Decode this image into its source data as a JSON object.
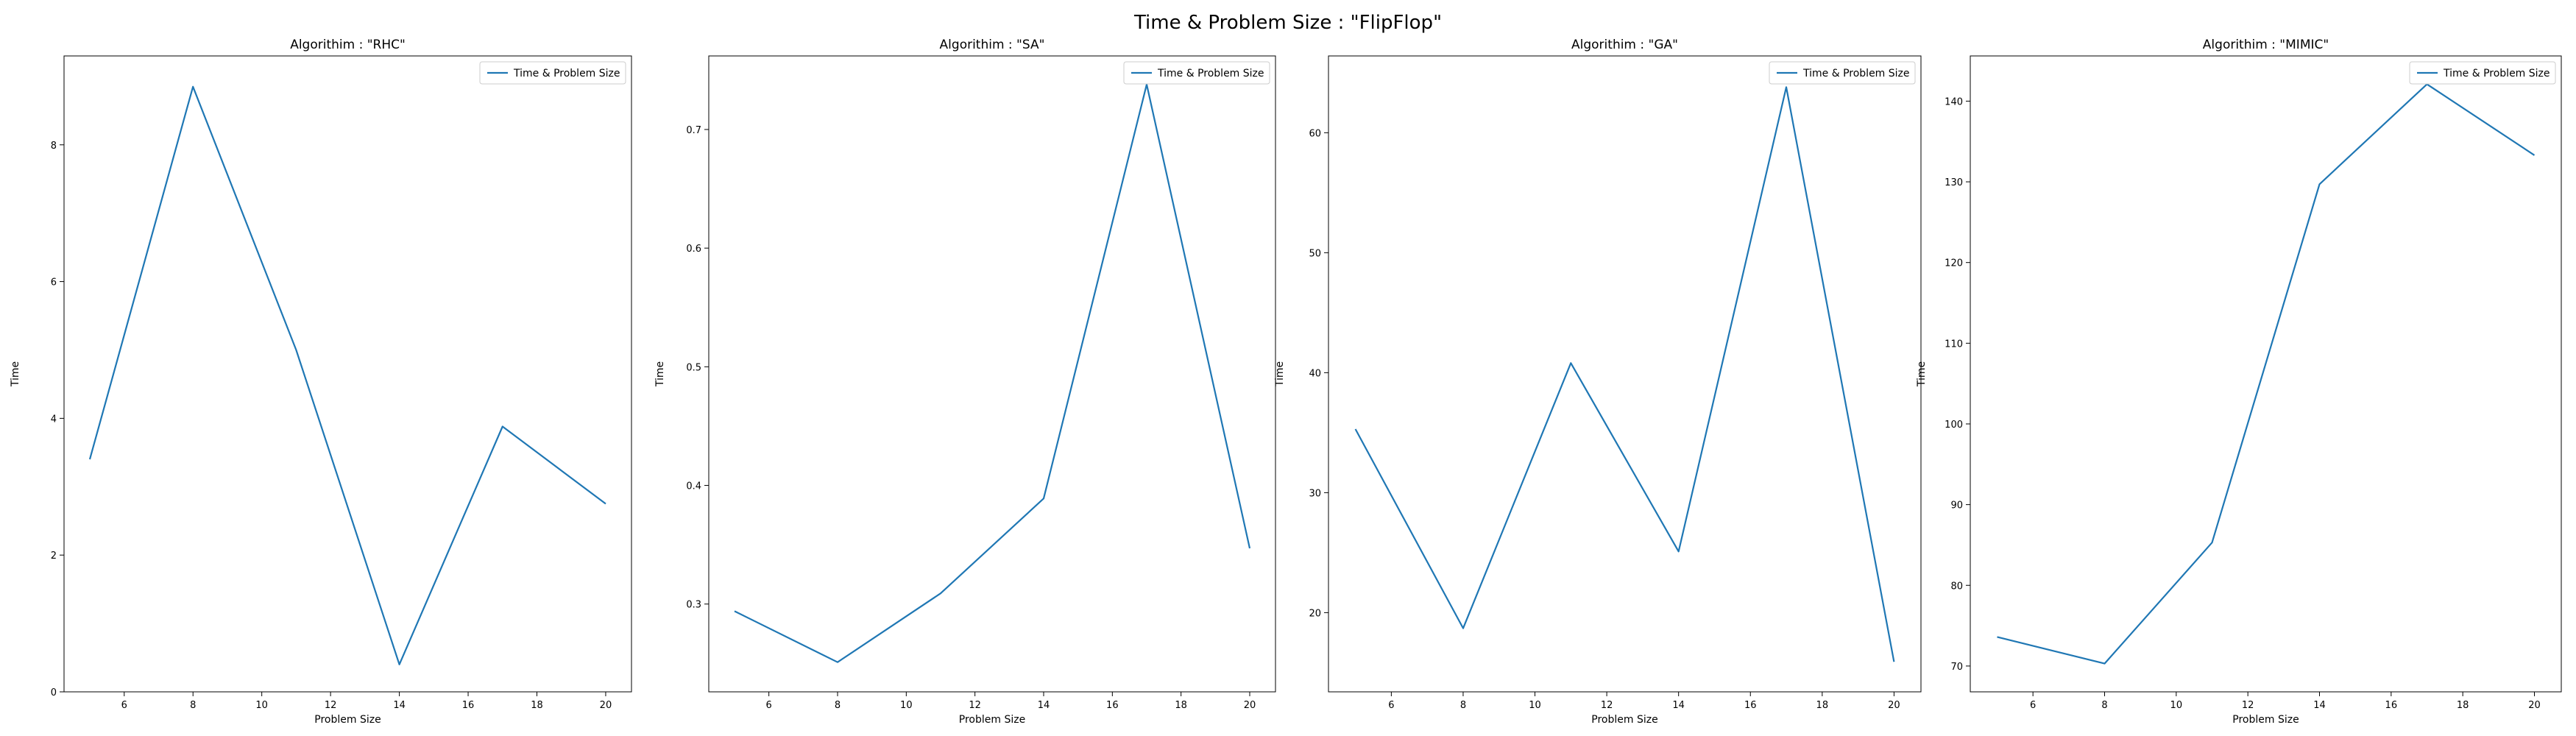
{
  "figure": {
    "title": "Time & Problem Size : \"FlipFlop\""
  },
  "colors": {
    "series": "#1f77b4"
  },
  "chart_data": [
    {
      "type": "line",
      "title": "Algorithim : \"RHC\"",
      "xlabel": "Problem Size",
      "ylabel": "Time",
      "xlim": [
        4.25,
        20.75
      ],
      "ylim": [
        0,
        9.3
      ],
      "xticks": [
        6,
        8,
        10,
        12,
        14,
        16,
        18,
        20
      ],
      "yticks": [
        0,
        2,
        4,
        6,
        8
      ],
      "legend": "top-right",
      "grid": false,
      "series": [
        {
          "name": "Time & Problem Size",
          "x": [
            5,
            8,
            11,
            14,
            17,
            20
          ],
          "y": [
            3.4,
            8.85,
            5.0,
            0.4,
            3.88,
            2.75
          ]
        }
      ]
    },
    {
      "type": "line",
      "title": "Algorithim : \"SA\"",
      "xlabel": "Problem Size",
      "ylabel": "Time",
      "xlim": [
        4.25,
        20.75
      ],
      "ylim": [
        0.226,
        0.762
      ],
      "xticks": [
        6,
        8,
        10,
        12,
        14,
        16,
        18,
        20
      ],
      "yticks": [
        0.3,
        0.4,
        0.5,
        0.6,
        0.7
      ],
      "legend": "top-right",
      "grid": false,
      "series": [
        {
          "name": "Time & Problem Size",
          "x": [
            5,
            8,
            11,
            14,
            17,
            20
          ],
          "y": [
            0.294,
            0.251,
            0.309,
            0.389,
            0.738,
            0.347
          ]
        }
      ]
    },
    {
      "type": "line",
      "title": "Algorithim : \"GA\"",
      "xlabel": "Problem Size",
      "ylabel": "Time",
      "xlim": [
        4.25,
        20.75
      ],
      "ylim": [
        13.4,
        66.4
      ],
      "xticks": [
        6,
        8,
        10,
        12,
        14,
        16,
        18,
        20
      ],
      "yticks": [
        20,
        30,
        40,
        50,
        60
      ],
      "legend": "top-right",
      "grid": false,
      "series": [
        {
          "name": "Time & Problem Size",
          "x": [
            5,
            8,
            11,
            14,
            17,
            20
          ],
          "y": [
            35.3,
            18.7,
            40.8,
            25.1,
            63.8,
            15.9
          ]
        }
      ]
    },
    {
      "type": "line",
      "title": "Algorithim : \"MIMIC\"",
      "xlabel": "Problem Size",
      "ylabel": "Time",
      "xlim": [
        4.25,
        20.75
      ],
      "ylim": [
        66.8,
        145.6
      ],
      "xticks": [
        6,
        8,
        10,
        12,
        14,
        16,
        18,
        20
      ],
      "yticks": [
        70,
        80,
        90,
        100,
        110,
        120,
        130,
        140
      ],
      "legend": "top-right",
      "grid": false,
      "series": [
        {
          "name": "Time & Problem Size",
          "x": [
            5,
            8,
            11,
            14,
            17,
            20
          ],
          "y": [
            73.6,
            70.3,
            85.3,
            129.7,
            142.1,
            133.3
          ]
        }
      ]
    }
  ]
}
